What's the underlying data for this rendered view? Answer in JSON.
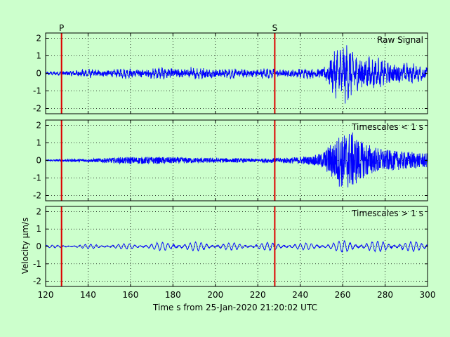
{
  "chart_data": {
    "type": "line",
    "xlabel": "Time s from 25-Jan-2020 21:20:02 UTC",
    "ylabel": "Velocity μm/s",
    "xlim": [
      120,
      300
    ],
    "x_ticks": [
      120,
      140,
      160,
      180,
      200,
      220,
      240,
      260,
      280,
      300
    ],
    "grid": true,
    "line_color": "#0000ff",
    "marker_color": "#dd0000",
    "background": "#ccffcc",
    "phase_markers": [
      {
        "label": "P",
        "x": 127.5
      },
      {
        "label": "S",
        "x": 228.0
      }
    ],
    "panels": [
      {
        "label": "Raw Signal",
        "ylim": [
          -2.3,
          2.3
        ],
        "y_ticks": [
          -2,
          -1,
          0,
          1,
          2
        ],
        "envelope": [
          [
            120,
            0.1
          ],
          [
            125,
            0.12
          ],
          [
            128,
            0.18
          ],
          [
            132,
            0.25
          ],
          [
            140,
            0.28
          ],
          [
            150,
            0.3
          ],
          [
            160,
            0.33
          ],
          [
            175,
            0.4
          ],
          [
            190,
            0.42
          ],
          [
            200,
            0.38
          ],
          [
            210,
            0.32
          ],
          [
            220,
            0.35
          ],
          [
            228,
            0.3
          ],
          [
            240,
            0.32
          ],
          [
            250,
            0.4
          ],
          [
            253,
            0.9
          ],
          [
            256,
            1.6
          ],
          [
            260,
            1.9
          ],
          [
            264,
            1.9
          ],
          [
            268,
            1.5
          ],
          [
            275,
            1.0
          ],
          [
            285,
            0.8
          ],
          [
            295,
            0.6
          ],
          [
            300,
            0.55
          ]
        ],
        "period": 1.5,
        "fine_ratio": 0.55
      },
      {
        "label": "Timescales < 1 s",
        "ylim": [
          -2.3,
          2.3
        ],
        "y_ticks": [
          -2,
          -1,
          0,
          1,
          2
        ],
        "envelope": [
          [
            120,
            0.05
          ],
          [
            128,
            0.07
          ],
          [
            140,
            0.1
          ],
          [
            150,
            0.16
          ],
          [
            160,
            0.22
          ],
          [
            170,
            0.22
          ],
          [
            180,
            0.2
          ],
          [
            200,
            0.15
          ],
          [
            220,
            0.12
          ],
          [
            230,
            0.15
          ],
          [
            245,
            0.25
          ],
          [
            250,
            0.45
          ],
          [
            255,
            1.1
          ],
          [
            260,
            1.7
          ],
          [
            264,
            1.8
          ],
          [
            268,
            1.3
          ],
          [
            275,
            0.8
          ],
          [
            285,
            0.6
          ],
          [
            300,
            0.45
          ]
        ],
        "period": 0.5,
        "fine_ratio": 0.9
      },
      {
        "label": "Timescales > 1 s",
        "ylim": [
          -2.3,
          2.3
        ],
        "y_ticks": [
          -2,
          -1,
          0,
          1,
          2
        ],
        "envelope": [
          [
            120,
            0.08
          ],
          [
            130,
            0.1
          ],
          [
            145,
            0.15
          ],
          [
            165,
            0.18
          ],
          [
            180,
            0.3
          ],
          [
            200,
            0.25
          ],
          [
            215,
            0.2
          ],
          [
            225,
            0.25
          ],
          [
            240,
            0.2
          ],
          [
            255,
            0.25
          ],
          [
            262,
            0.4
          ],
          [
            270,
            0.3
          ],
          [
            280,
            0.35
          ],
          [
            290,
            0.3
          ],
          [
            300,
            0.3
          ]
        ],
        "period": 2.6,
        "fine_ratio": 0.1
      }
    ]
  }
}
